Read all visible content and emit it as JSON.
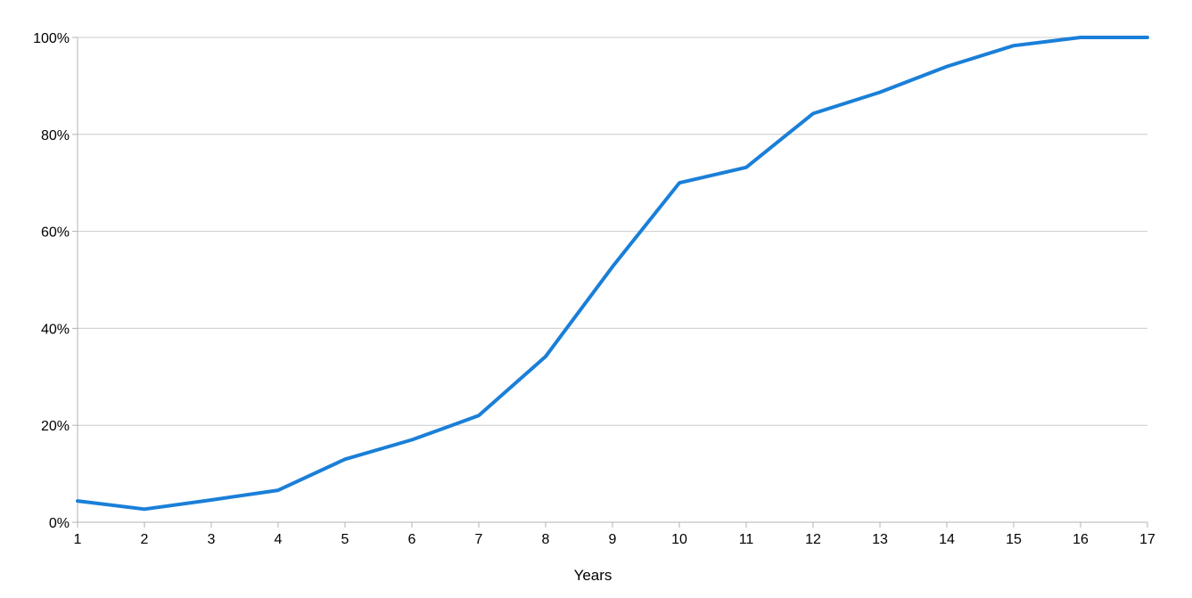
{
  "chart_data": {
    "type": "line",
    "title": "",
    "xlabel": "Years",
    "ylabel": "",
    "x": [
      1,
      2,
      3,
      4,
      5,
      6,
      7,
      8,
      9,
      10,
      11,
      12,
      13,
      14,
      15,
      16,
      17
    ],
    "series": [
      {
        "values": [
          4.4,
          2.7,
          4.6,
          6.6,
          13.0,
          17.0,
          22.0,
          34.2,
          52.7,
          70.0,
          73.2,
          84.3,
          88.7,
          94.0,
          98.3,
          100,
          100
        ],
        "color": "#1a7fd8"
      }
    ],
    "ylim": [
      0,
      100
    ],
    "xlim": [
      1,
      17
    ],
    "yticks": [
      0,
      20,
      40,
      60,
      80,
      100
    ],
    "ytick_labels": [
      "0%",
      "20%",
      "40%",
      "60%",
      "80%",
      "100%"
    ],
    "xtick_labels": [
      "1",
      "2",
      "3",
      "4",
      "5",
      "6",
      "7",
      "8",
      "9",
      "10",
      "11",
      "12",
      "13",
      "14",
      "15",
      "16",
      "17"
    ],
    "grid": true,
    "grid_color": "#cccccc",
    "legend": "none"
  }
}
